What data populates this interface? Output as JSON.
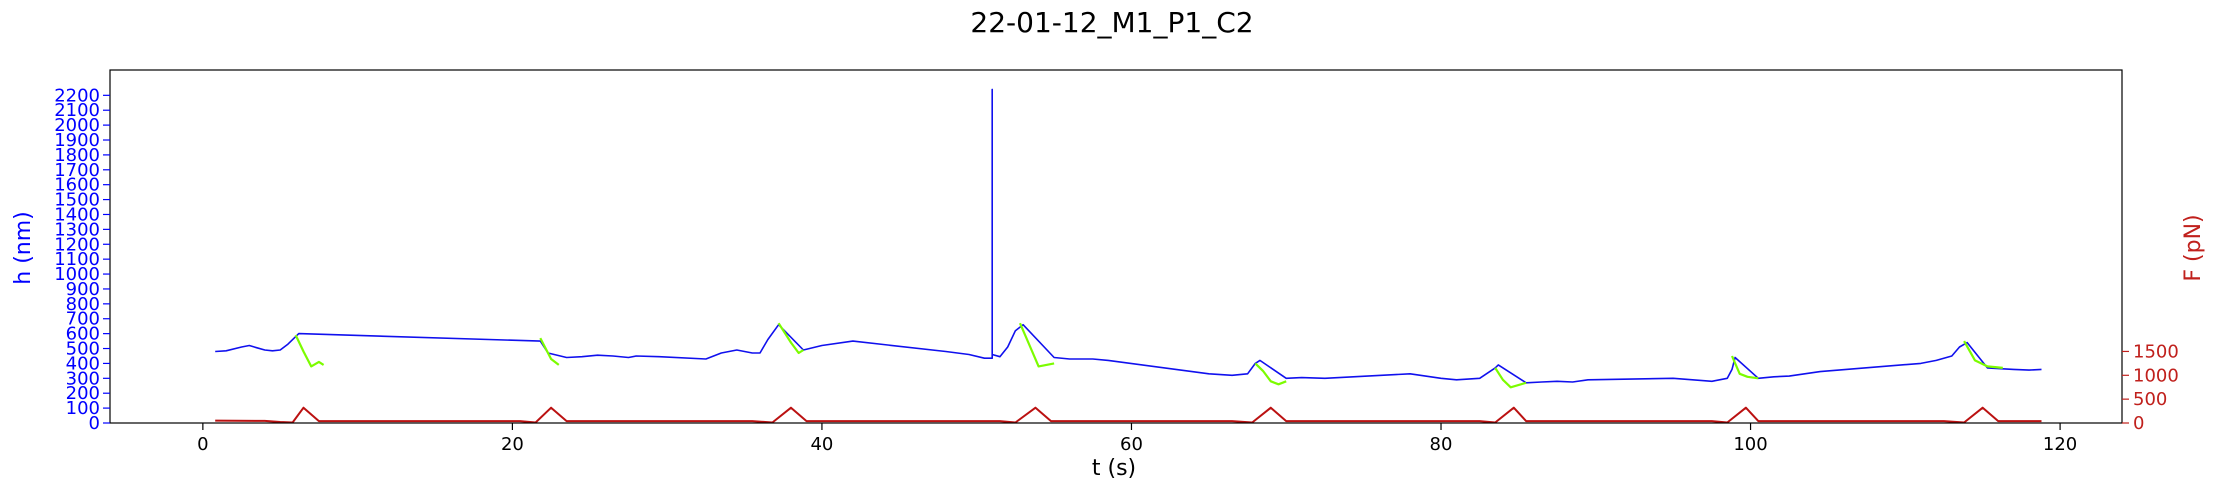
{
  "chart_data": {
    "type": "line",
    "title": "22-01-12_M1_P1_C2",
    "xlabel": "t (s)",
    "ylabel_left": "h (nm)",
    "ylabel_right": "F (pN)",
    "xlim": [
      -6,
      124
    ],
    "ylim_left": [
      0,
      2370
    ],
    "ylim_right": [
      0,
      7400
    ],
    "x_ticks": [
      0,
      20,
      40,
      60,
      80,
      100,
      120
    ],
    "y_left_ticks": [
      0,
      100,
      200,
      300,
      400,
      500,
      600,
      700,
      800,
      900,
      1000,
      1100,
      1200,
      1300,
      1400,
      1500,
      1600,
      1700,
      1800,
      1900,
      2000,
      2100,
      2200
    ],
    "y_right_ticks": [
      0,
      500,
      1000,
      1500
    ],
    "colors": {
      "height": "#1010ee",
      "highlight": "#7cfc00",
      "force": "#bb1111",
      "axis_left": "#0000ff",
      "axis_right": "#c0201c",
      "frame": "#000000"
    },
    "grid": false,
    "series": [
      {
        "role": "height",
        "axis": "left",
        "points": [
          [
            0.8,
            480
          ],
          [
            1.5,
            485
          ],
          [
            2.5,
            510
          ],
          [
            3.0,
            520
          ],
          [
            3.5,
            505
          ],
          [
            4.0,
            490
          ],
          [
            4.5,
            485
          ],
          [
            5.0,
            490
          ],
          [
            5.5,
            530
          ],
          [
            6.0,
            580
          ],
          [
            6.2,
            600
          ],
          [
            21.8,
            550
          ],
          [
            22.3,
            470
          ],
          [
            23.5,
            440
          ],
          [
            24.5,
            445
          ],
          [
            25.5,
            455
          ],
          [
            26.5,
            450
          ],
          [
            27.5,
            440
          ],
          [
            28.0,
            450
          ],
          [
            29.5,
            445
          ],
          [
            32.5,
            430
          ],
          [
            33.5,
            470
          ],
          [
            34.5,
            490
          ],
          [
            35.5,
            470
          ],
          [
            36.0,
            470
          ],
          [
            36.5,
            560
          ],
          [
            37.2,
            660
          ],
          [
            38.8,
            490
          ],
          [
            40.0,
            520
          ],
          [
            42.0,
            550
          ],
          [
            48.0,
            480
          ],
          [
            49.5,
            460
          ],
          [
            50.5,
            435
          ],
          [
            51.0,
            435
          ],
          [
            51.0,
            2240
          ],
          [
            51.0,
            460
          ],
          [
            51.5,
            445
          ],
          [
            52.0,
            510
          ],
          [
            52.5,
            620
          ],
          [
            53.0,
            660
          ],
          [
            55.0,
            440
          ],
          [
            56.0,
            430
          ],
          [
            57.5,
            430
          ],
          [
            58.5,
            420
          ],
          [
            65.0,
            330
          ],
          [
            66.5,
            320
          ],
          [
            67.5,
            330
          ],
          [
            68.0,
            400
          ],
          [
            68.3,
            420
          ],
          [
            70.0,
            300
          ],
          [
            71.0,
            305
          ],
          [
            72.5,
            300
          ],
          [
            78.0,
            330
          ],
          [
            80.0,
            300
          ],
          [
            81.0,
            290
          ],
          [
            82.5,
            300
          ],
          [
            83.5,
            370
          ],
          [
            83.7,
            390
          ],
          [
            85.5,
            270
          ],
          [
            86.5,
            275
          ],
          [
            87.5,
            280
          ],
          [
            88.5,
            275
          ],
          [
            89.5,
            290
          ],
          [
            95.0,
            300
          ],
          [
            97.5,
            280
          ],
          [
            98.5,
            300
          ],
          [
            98.8,
            360
          ],
          [
            99.0,
            440
          ],
          [
            100.5,
            300
          ],
          [
            101.5,
            310
          ],
          [
            102.5,
            315
          ],
          [
            103.5,
            330
          ],
          [
            104.5,
            345
          ],
          [
            111.0,
            400
          ],
          [
            112.0,
            420
          ],
          [
            113.0,
            450
          ],
          [
            113.5,
            510
          ],
          [
            114.0,
            540
          ],
          [
            115.3,
            370
          ],
          [
            116.0,
            365
          ],
          [
            117.0,
            360
          ],
          [
            118.0,
            355
          ],
          [
            118.8,
            360
          ]
        ]
      },
      {
        "role": "height_ramp",
        "axis": "left",
        "segments": [
          [
            [
              6.0,
              590
            ],
            [
              6.5,
              480
            ],
            [
              7.0,
              380
            ],
            [
              7.5,
              410
            ],
            [
              7.8,
              390
            ]
          ],
          [
            [
              21.8,
              570
            ],
            [
              22.5,
              430
            ],
            [
              23.0,
              390
            ]
          ],
          [
            [
              37.2,
              670
            ],
            [
              38.0,
              540
            ],
            [
              38.5,
              470
            ],
            [
              38.8,
              490
            ]
          ],
          [
            [
              52.8,
              670
            ],
            [
              53.5,
              500
            ],
            [
              54.0,
              380
            ],
            [
              55.0,
              400
            ]
          ],
          [
            [
              68.0,
              400
            ],
            [
              68.5,
              350
            ],
            [
              69.0,
              280
            ],
            [
              69.5,
              260
            ],
            [
              70.0,
              280
            ]
          ],
          [
            [
              83.5,
              370
            ],
            [
              84.0,
              290
            ],
            [
              84.5,
              240
            ],
            [
              85.5,
              270
            ]
          ],
          [
            [
              98.8,
              450
            ],
            [
              99.3,
              330
            ],
            [
              99.8,
              310
            ],
            [
              100.5,
              300
            ]
          ],
          [
            [
              113.8,
              550
            ],
            [
              114.5,
              420
            ],
            [
              115.3,
              380
            ],
            [
              116.3,
              370
            ]
          ]
        ]
      },
      {
        "role": "force",
        "axis": "right",
        "points": [
          [
            0.8,
            50
          ],
          [
            4.0,
            45
          ],
          [
            5.0,
            20
          ],
          [
            5.8,
            10
          ],
          [
            6.5,
            320
          ],
          [
            7.5,
            40
          ],
          [
            20.5,
            40
          ],
          [
            21.5,
            10
          ],
          [
            22.5,
            320
          ],
          [
            23.5,
            40
          ],
          [
            35.5,
            40
          ],
          [
            36.8,
            10
          ],
          [
            38.0,
            320
          ],
          [
            39.0,
            40
          ],
          [
            51.5,
            40
          ],
          [
            52.5,
            10
          ],
          [
            53.8,
            320
          ],
          [
            54.8,
            40
          ],
          [
            66.5,
            40
          ],
          [
            67.8,
            10
          ],
          [
            69.0,
            320
          ],
          [
            70.0,
            40
          ],
          [
            82.5,
            40
          ],
          [
            83.5,
            10
          ],
          [
            84.7,
            320
          ],
          [
            85.5,
            40
          ],
          [
            97.5,
            40
          ],
          [
            98.5,
            10
          ],
          [
            99.7,
            320
          ],
          [
            100.5,
            40
          ],
          [
            112.5,
            40
          ],
          [
            113.8,
            10
          ],
          [
            115.0,
            320
          ],
          [
            116.0,
            40
          ],
          [
            118.8,
            40
          ]
        ]
      }
    ]
  }
}
